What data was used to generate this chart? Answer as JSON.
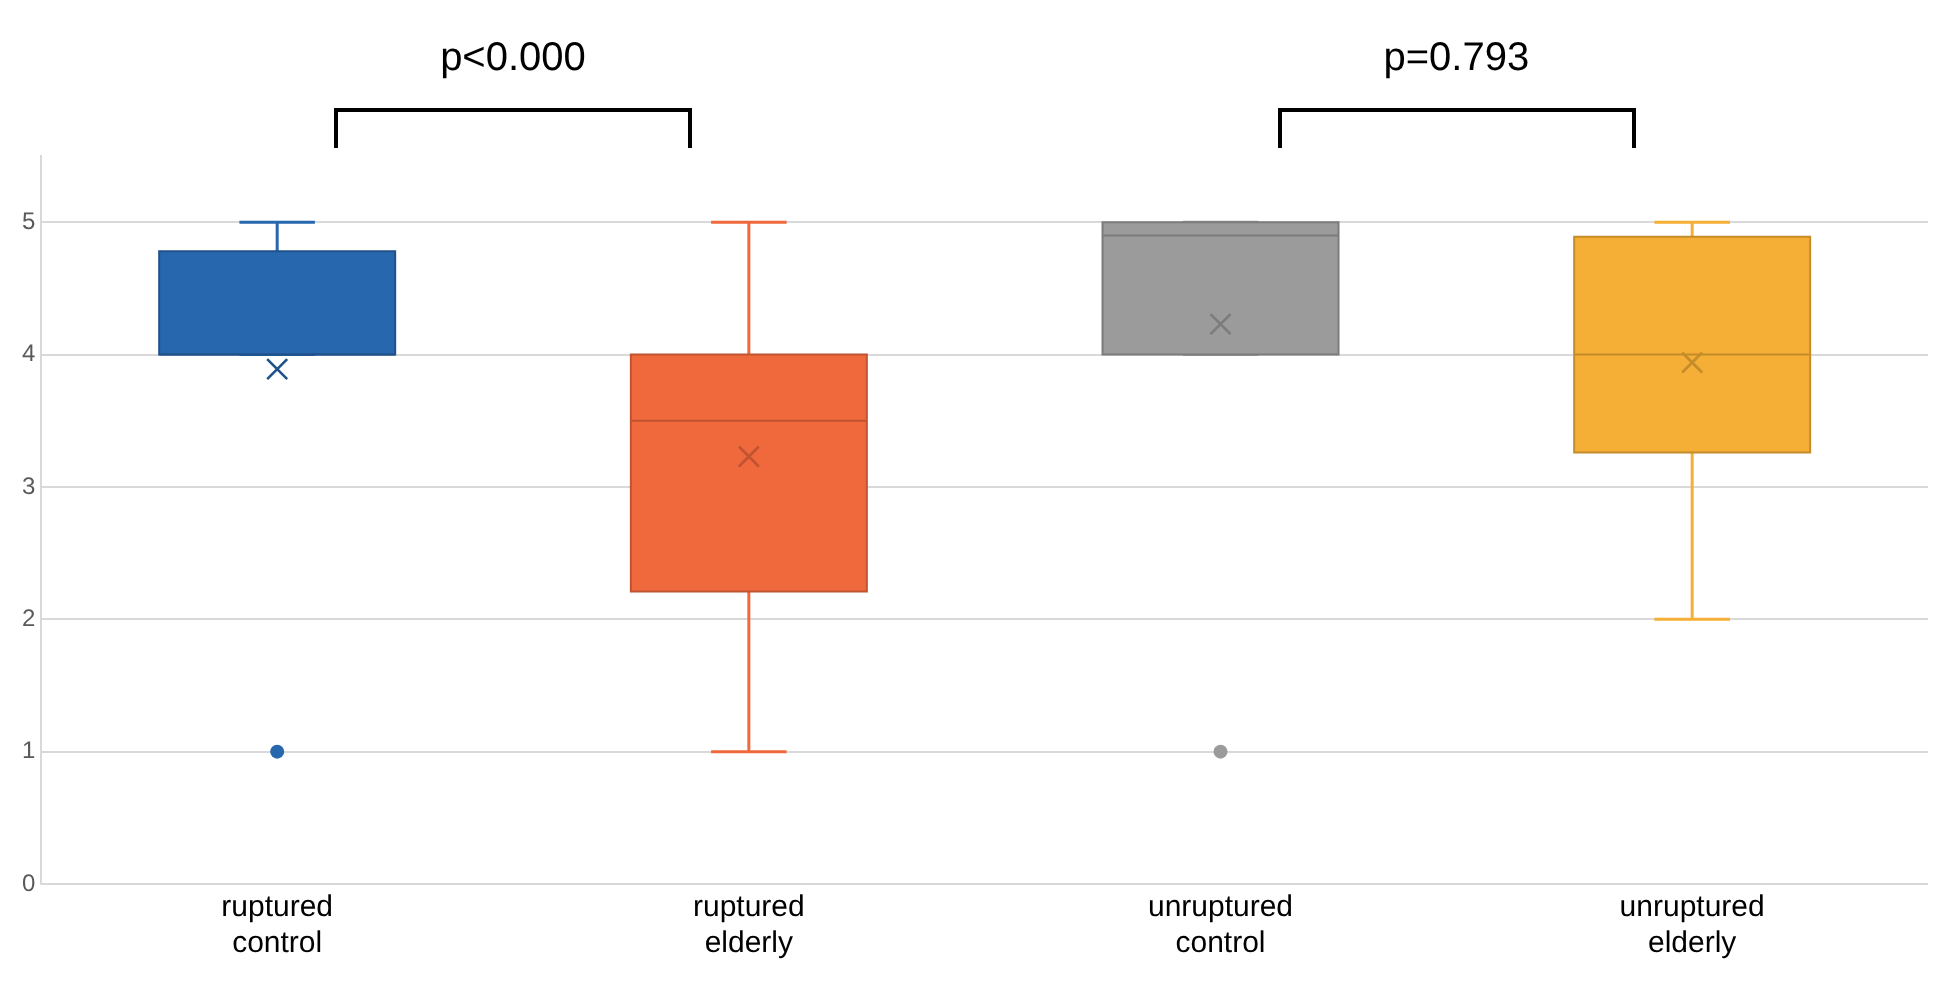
{
  "chart_data": {
    "type": "box",
    "categories": [
      "ruptured control",
      "ruptured elderly",
      "unruptured control",
      "unruptured elderly"
    ],
    "boxes": [
      {
        "low": 4,
        "q1": 4,
        "median": 4,
        "q3": 4.78,
        "high": 5,
        "mean": 3.89,
        "outliers": [
          1
        ]
      },
      {
        "low": 1,
        "q1": 2.21,
        "median": 3.5,
        "q3": 4,
        "high": 5,
        "mean": 3.23
      },
      {
        "low": 4,
        "q1": 4,
        "median": 4.9,
        "q3": 5,
        "high": 5,
        "mean": 4.23,
        "outliers": [
          1
        ]
      },
      {
        "low": 2,
        "q1": 3.26,
        "median": 4,
        "q3": 4.89,
        "high": 5,
        "mean": 3.94
      }
    ],
    "colors": [
      "#2767ae",
      "#f0693d",
      "#9b9b9b",
      "#f5af36"
    ],
    "ylim": [
      0,
      5.5
    ],
    "yticks": [
      0,
      1,
      2,
      3,
      4,
      5
    ],
    "grid": "y",
    "annotations": [
      "p<0.000",
      "p=0.793"
    ]
  }
}
